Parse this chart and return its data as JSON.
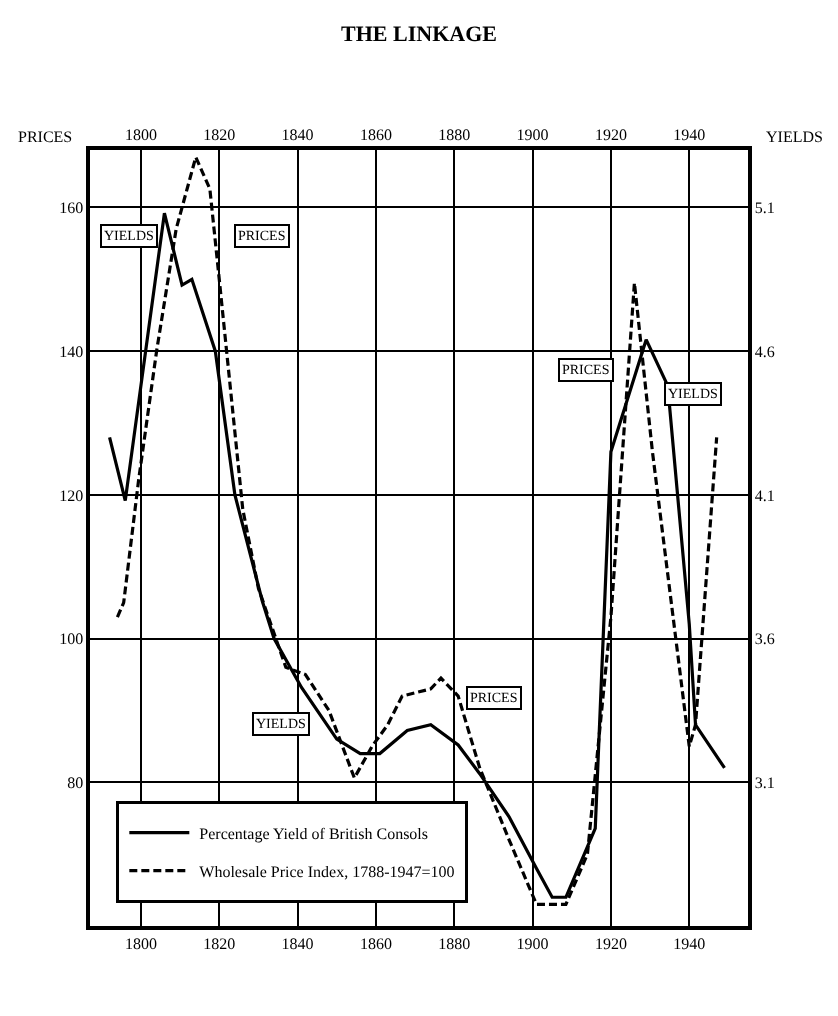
{
  "chart_data": {
    "type": "line",
    "title": "THE LINKAGE",
    "ylabel": "PRICES",
    "y2label": "YIELDS",
    "xlim": [
      1787,
      1955
    ],
    "xticks": [
      1800,
      1820,
      1840,
      1860,
      1880,
      1900,
      1920,
      1940
    ],
    "x2lim": [
      1787,
      1955
    ],
    "x2ticks": [
      1800,
      1820,
      1840,
      1860,
      1880,
      1900,
      1920,
      1940
    ],
    "ylim": [
      60,
      168
    ],
    "yticks": [
      80,
      100,
      120,
      140,
      160
    ],
    "y2lim": [
      2.6,
      5.3
    ],
    "y2ticks": [
      3.1,
      3.6,
      4.1,
      4.6,
      5.1
    ],
    "grid": true,
    "legend": "bottom left",
    "series": [
      {
        "name": "Percentage Yield of British Consols",
        "color": "#000000",
        "axis": "y2",
        "line_style": "solid",
        "x": [
          1792,
          1796,
          1806,
          1810.5,
          1813,
          1819,
          1824,
          1831,
          1834,
          1841,
          1846,
          1850,
          1856,
          1861,
          1868,
          1874,
          1881,
          1886.5,
          1894,
          1901,
          1905,
          1908.5,
          1916,
          1920,
          1929,
          1934.5,
          1940,
          1941.6,
          1949
        ],
        "values": [
          4.3,
          4.08,
          5.08,
          4.83,
          4.85,
          4.6,
          4.1,
          3.73,
          3.6,
          3.43,
          3.33,
          3.25,
          3.2,
          3.2,
          3.28,
          3.3,
          3.23,
          3.13,
          2.98,
          2.8,
          2.7,
          2.7,
          2.94,
          4.25,
          4.64,
          4.48,
          3.65,
          3.3,
          3.15
        ]
      },
      {
        "name": "Wholesale Price Index, 1788-1947=100",
        "color": "#000000",
        "axis": "y",
        "line_style": "dashed",
        "x": [
          1794,
          1795.6,
          1799.4,
          1804,
          1809,
          1814,
          1817.6,
          1820,
          1826,
          1830,
          1837,
          1842,
          1848,
          1854.5,
          1859,
          1863,
          1866.7,
          1874,
          1876.6,
          1881,
          1886.5,
          1894,
          1901,
          1908.5,
          1914,
          1920,
          1926,
          1930.6,
          1940,
          1941.6,
          1947
        ],
        "values": [
          103,
          105,
          122,
          140,
          157,
          167,
          162.6,
          150,
          118,
          107,
          96,
          95,
          90,
          80.6,
          85,
          88,
          92,
          93,
          94.5,
          92,
          82,
          72,
          63,
          63,
          70,
          103,
          149.5,
          126,
          85,
          88,
          128
        ]
      }
    ],
    "annotations": [
      {
        "text": "YIELDS",
        "x": 1797,
        "y": 156
      },
      {
        "text": "PRICES",
        "x": 1831,
        "y": 156
      },
      {
        "text": "YIELDS",
        "x": 1836,
        "y": 88
      },
      {
        "text": "PRICES",
        "x": 1890,
        "y": 91.6
      },
      {
        "text": "PRICES",
        "x": 1913.5,
        "y": 137.5
      },
      {
        "text": "YIELDS",
        "x": 1941,
        "y": 134
      }
    ]
  }
}
